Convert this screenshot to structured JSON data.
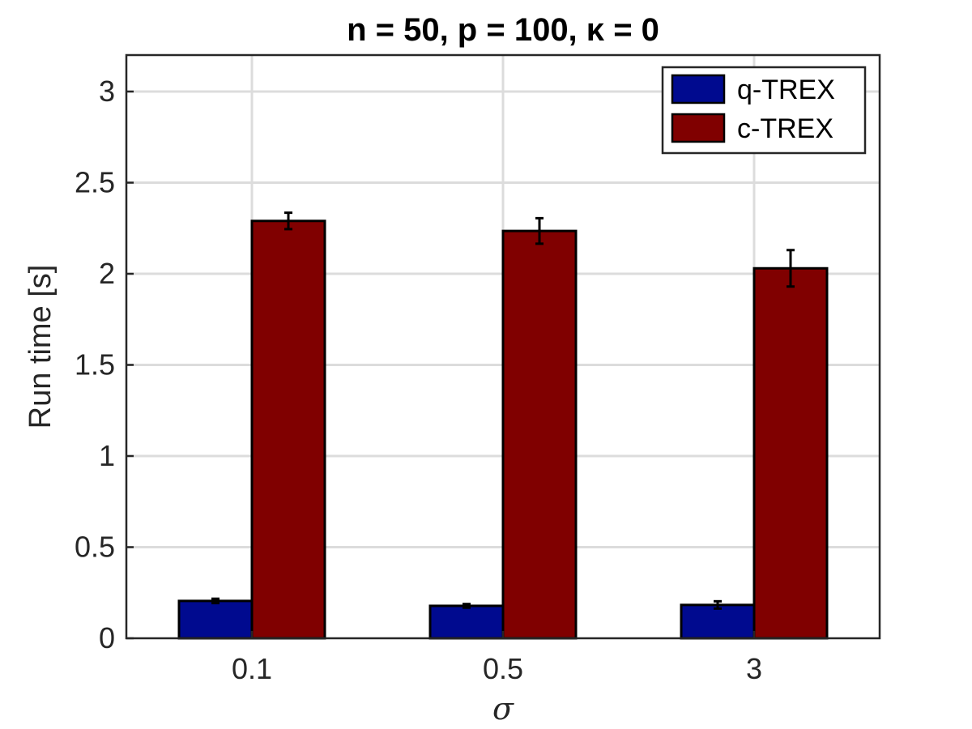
{
  "chart_data": {
    "type": "bar",
    "title": "n = 50, p = 100, κ = 0",
    "xlabel": "σ",
    "ylabel": "Run time [s]",
    "categories": [
      "0.1",
      "0.5",
      "3"
    ],
    "ylim": [
      0,
      3.2
    ],
    "yticks": [
      0,
      0.5,
      1,
      1.5,
      2,
      2.5,
      3
    ],
    "ytick_labels": [
      "0",
      "0.5",
      "1",
      "1.5",
      "2",
      "2.5",
      "3"
    ],
    "grid": true,
    "legend_position": "top-right",
    "series": [
      {
        "name": "q-TREX",
        "color": "#000a8f",
        "values": [
          0.205,
          0.178,
          0.183
        ],
        "errors": [
          0.012,
          0.01,
          0.02
        ]
      },
      {
        "name": "c-TREX",
        "color": "#800000",
        "values": [
          2.29,
          2.235,
          2.03
        ],
        "errors": [
          0.045,
          0.07,
          0.1
        ]
      }
    ]
  }
}
